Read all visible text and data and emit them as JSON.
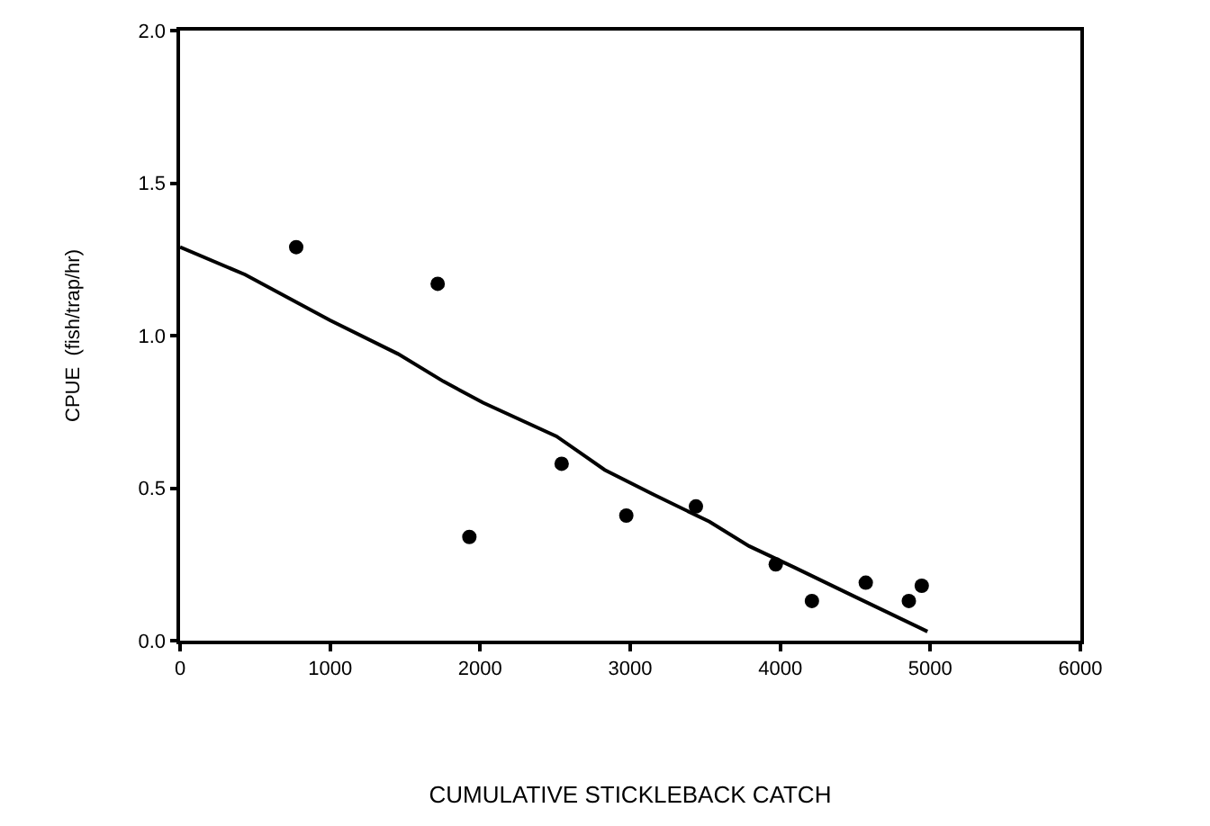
{
  "chart_data": {
    "type": "scatter",
    "xlabel": "CUMULATIVE STICKLEBACK CATCH",
    "ylabel": "CPUE  (fish/trap/hr)",
    "xlim": [
      0,
      6000
    ],
    "xticks": [
      0,
      1000,
      2000,
      3000,
      4000,
      5000,
      6000
    ],
    "ylim": [
      0,
      2
    ],
    "yticks": [
      {
        "value": 0,
        "label": "0.0"
      },
      {
        "value": 0.5,
        "label": "0.5"
      },
      {
        "value": 1,
        "label": "1.0"
      },
      {
        "value": 1.5,
        "label": "1.5"
      },
      {
        "value": 2,
        "label": "2.0"
      }
    ],
    "marker": "circle",
    "series": [
      {
        "color": "#000000",
        "x": [
          774,
          1717,
          1928,
          2543,
          2974,
          3438,
          3970,
          4211,
          4570,
          4857,
          4943
        ],
        "values": [
          1.29,
          1.17,
          0.34,
          0.58,
          0.41,
          0.44,
          0.25,
          0.13,
          0.19,
          0.13,
          0.18
        ]
      },
      {
        "type": "line",
        "color": "#000000",
        "marker": "none",
        "line_style": "solid",
        "x": [
          0,
          434,
          774,
          1000,
          1453,
          1755,
          2019,
          2509,
          2830,
          3151,
          3528,
          3792,
          4094,
          4472,
          4981
        ],
        "values": [
          1.29,
          1.2,
          1.11,
          1.05,
          0.94,
          0.85,
          0.78,
          0.67,
          0.56,
          0.48,
          0.39,
          0.31,
          0.24,
          0.15,
          0.03
        ]
      }
    ]
  }
}
